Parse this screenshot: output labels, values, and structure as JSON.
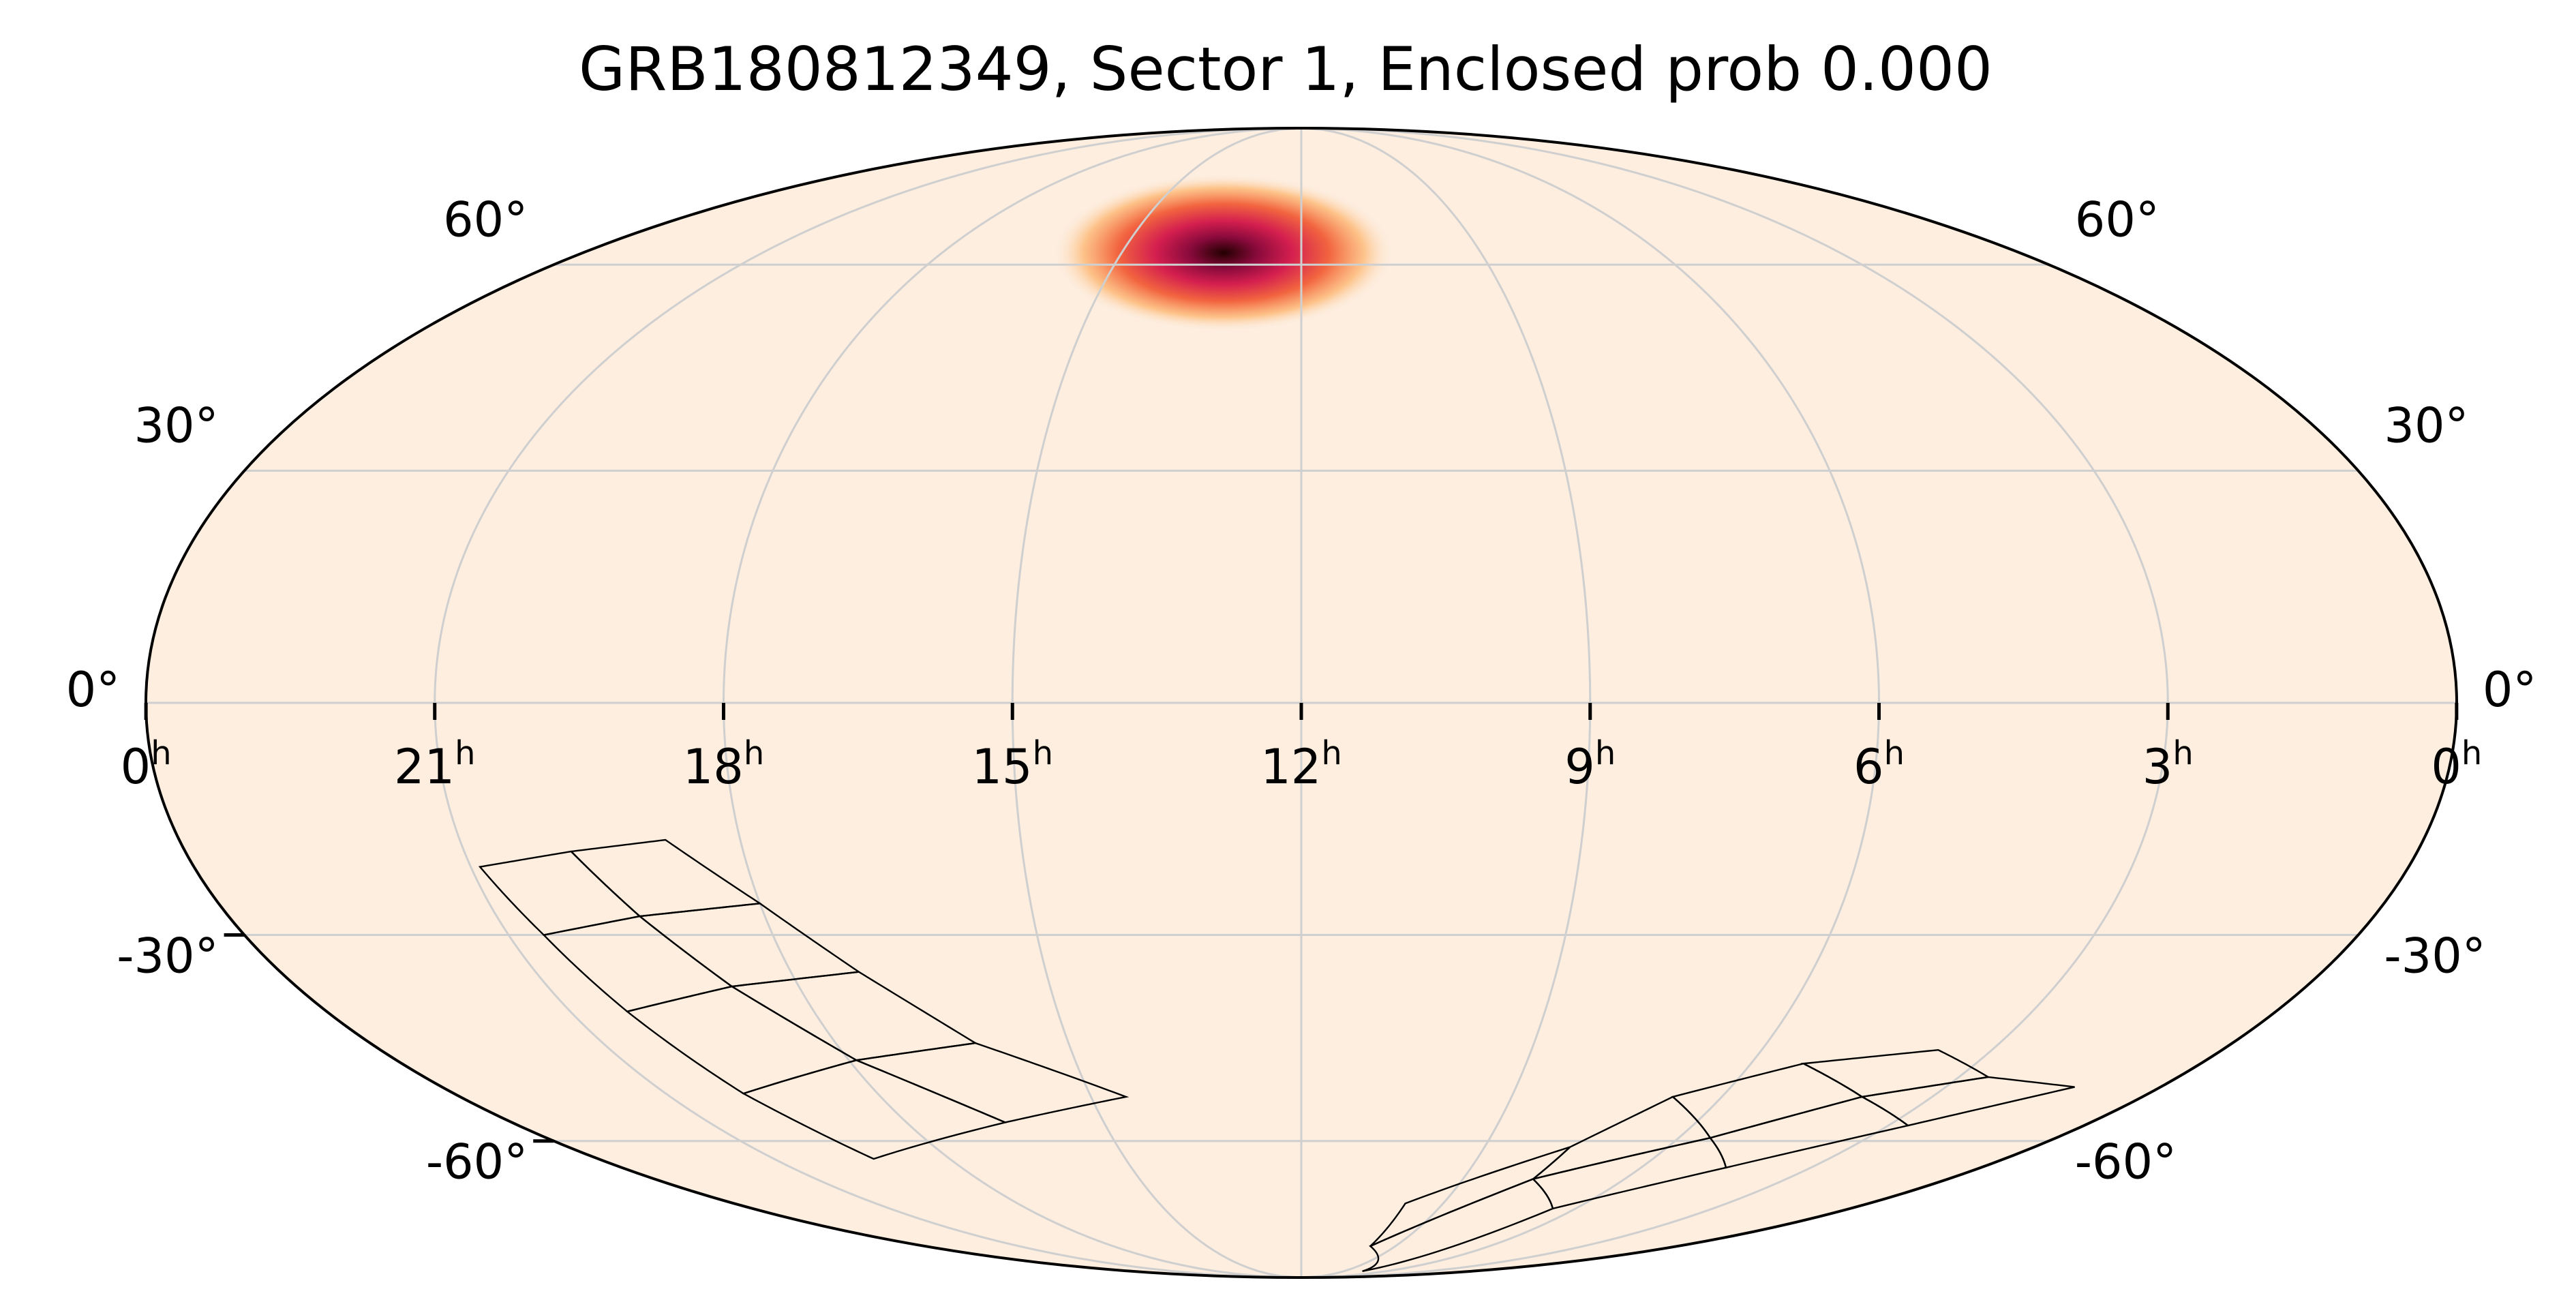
{
  "chart_data": {
    "type": "heatmap",
    "projection": "mollweide",
    "title": "GRB180812349, Sector 1, Enclosed prob 0.000",
    "ra_ticks": [
      {
        "hours": 24,
        "label": "0",
        "unit": "h"
      },
      {
        "hours": 21,
        "label": "21",
        "unit": "h"
      },
      {
        "hours": 18,
        "label": "18",
        "unit": "h"
      },
      {
        "hours": 15,
        "label": "15",
        "unit": "h"
      },
      {
        "hours": 12,
        "label": "12",
        "unit": "h"
      },
      {
        "hours": 9,
        "label": "9",
        "unit": "h"
      },
      {
        "hours": 6,
        "label": "6",
        "unit": "h"
      },
      {
        "hours": 3,
        "label": "3",
        "unit": "h"
      },
      {
        "hours": 0,
        "label": "0",
        "unit": "h"
      }
    ],
    "dec_ticks": [
      {
        "deg": 60,
        "label": "60°"
      },
      {
        "deg": 30,
        "label": "30°"
      },
      {
        "deg": 0,
        "label": "0°"
      },
      {
        "deg": -30,
        "label": "-30°"
      },
      {
        "deg": -60,
        "label": "-60°"
      }
    ],
    "grid": true,
    "ra_axis_direction": "increasing to the left",
    "colormap": [
      "#fdeee0",
      "#fdbb7a",
      "#f2653f",
      "#d41f4f",
      "#8a0a3c",
      "#230000"
    ],
    "probability_peak": {
      "ra_hours": 13.3,
      "dec_deg": 62,
      "spread_ra_hours": 1.3,
      "spread_dec_deg": 6
    },
    "sector_footprints": [
      {
        "camera": 1,
        "quads": [
          [
            [
              20.9,
              -21
            ],
            [
              19.85,
              -19
            ],
            [
              19.4,
              -27.5
            ],
            [
              20.6,
              -30
            ]
          ],
          [
            [
              19.85,
              -19
            ],
            [
              18.8,
              -17.5
            ],
            [
              18.0,
              -25.8
            ],
            [
              19.4,
              -27.5
            ]
          ],
          [
            [
              20.6,
              -30
            ],
            [
              19.4,
              -27.5
            ],
            [
              18.8,
              -37
            ],
            [
              20.3,
              -40.5
            ]
          ],
          [
            [
              19.4,
              -27.5
            ],
            [
              18.0,
              -25.8
            ],
            [
              17.2,
              -35
            ],
            [
              18.8,
              -37
            ]
          ]
        ]
      },
      {
        "camera": 2,
        "quads": [
          [
            [
              20.3,
              -40.5
            ],
            [
              18.8,
              -37
            ],
            [
              17.9,
              -47.5
            ],
            [
              19.9,
              -52.5
            ]
          ],
          [
            [
              18.8,
              -37
            ],
            [
              17.2,
              -35
            ],
            [
              16.2,
              -45
            ],
            [
              17.9,
              -47.5
            ]
          ],
          [
            [
              19.9,
              -52.5
            ],
            [
              17.9,
              -47.5
            ],
            [
              16.5,
              -57
            ],
            [
              19.3,
              -63
            ]
          ],
          [
            [
              17.9,
              -47.5
            ],
            [
              16.2,
              -45
            ],
            [
              14.5,
              -53
            ],
            [
              16.5,
              -57
            ]
          ]
        ]
      },
      {
        "camera": 3,
        "quads": [
          [
            [
              9.8,
              -71
            ],
            [
              9.8,
              -80
            ],
            [
              7.7,
              -66.5
            ],
            [
              7.6,
              -61
            ]
          ],
          [
            [
              7.6,
              -61
            ],
            [
              7.7,
              -66.5
            ],
            [
              5.5,
              -59.5
            ],
            [
              6.7,
              -53
            ]
          ],
          [
            [
              9.8,
              -80
            ],
            [
              7.7,
              -87
            ],
            [
              6.5,
              -72
            ],
            [
              7.7,
              -66.5
            ]
          ],
          [
            [
              7.7,
              -66.5
            ],
            [
              6.5,
              -72
            ],
            [
              4.5,
              -64.5
            ],
            [
              5.5,
              -59.5
            ]
          ]
        ]
      },
      {
        "camera": 4,
        "quads": [
          [
            [
              6.7,
              -53
            ],
            [
              5.5,
              -59.5
            ],
            [
              4.0,
              -53
            ],
            [
              5.3,
              -48
            ]
          ],
          [
            [
              5.5,
              -59.5
            ],
            [
              4.5,
              -64.5
            ],
            [
              2.7,
              -57.5
            ],
            [
              4.0,
              -53
            ]
          ],
          [
            [
              5.3,
              -48
            ],
            [
              4.0,
              -53
            ],
            [
              2.6,
              -50
            ],
            [
              3.7,
              -46
            ]
          ],
          [
            [
              4.0,
              -53
            ],
            [
              2.7,
              -57.5
            ],
            [
              1.2,
              -51.5
            ],
            [
              2.6,
              -50
            ]
          ]
        ]
      }
    ]
  }
}
